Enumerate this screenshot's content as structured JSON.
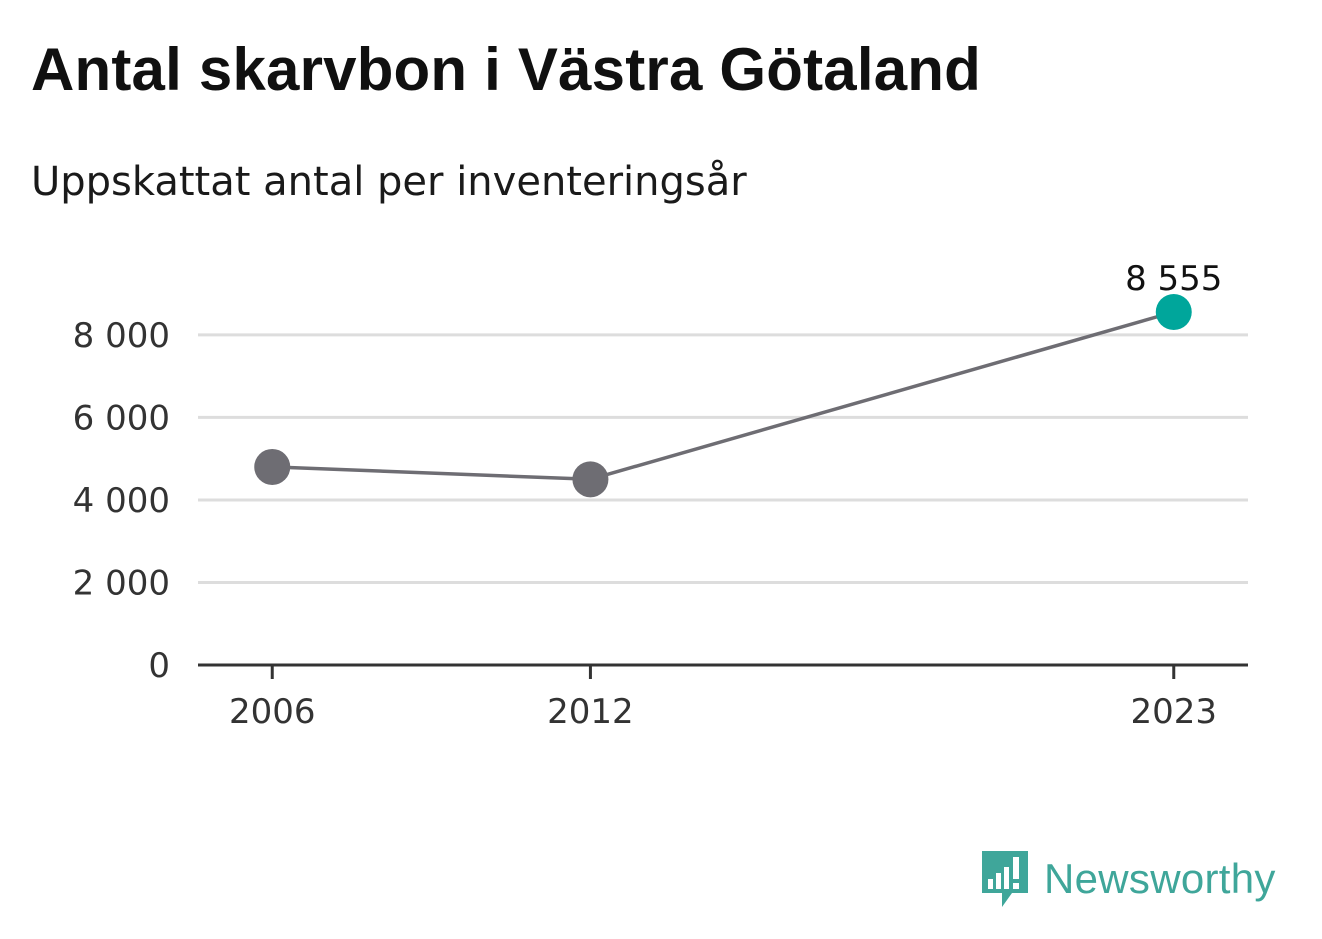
{
  "title": "Antal skarvbon i Västra Götaland",
  "subtitle": "Uppskattat antal per inventeringsår",
  "brand": {
    "name": "Newsworthy",
    "icon": "newsworthy-chart-bubble-icon",
    "color": "#3fa69a"
  },
  "colors": {
    "line": "#6e6d73",
    "point": "#6e6d73",
    "highlight": "#00a69b",
    "grid": "#dddddd",
    "axis": "#333333"
  },
  "chart_data": {
    "type": "line",
    "x": [
      2006,
      2012,
      2023
    ],
    "x_tick_labels": [
      "2006",
      "2012",
      "2023"
    ],
    "series": [
      {
        "values": [
          4800,
          4500,
          8555
        ]
      }
    ],
    "y_ticks": [
      0,
      2000,
      4000,
      6000,
      8000
    ],
    "y_tick_labels": [
      "0",
      "2 000",
      "4 000",
      "6 000",
      "8 000"
    ],
    "ylim": [
      0,
      8555
    ],
    "xlim": [
      2004.6,
      2024.4
    ],
    "grid": true,
    "data_labels": [
      {
        "x": 2023,
        "text": "8 555"
      }
    ],
    "highlight_point_index": 2,
    "title": "Antal skarvbon i Västra Götaland",
    "subtitle": "Uppskattat antal per inventeringsår",
    "xlabel": "",
    "ylabel": ""
  }
}
